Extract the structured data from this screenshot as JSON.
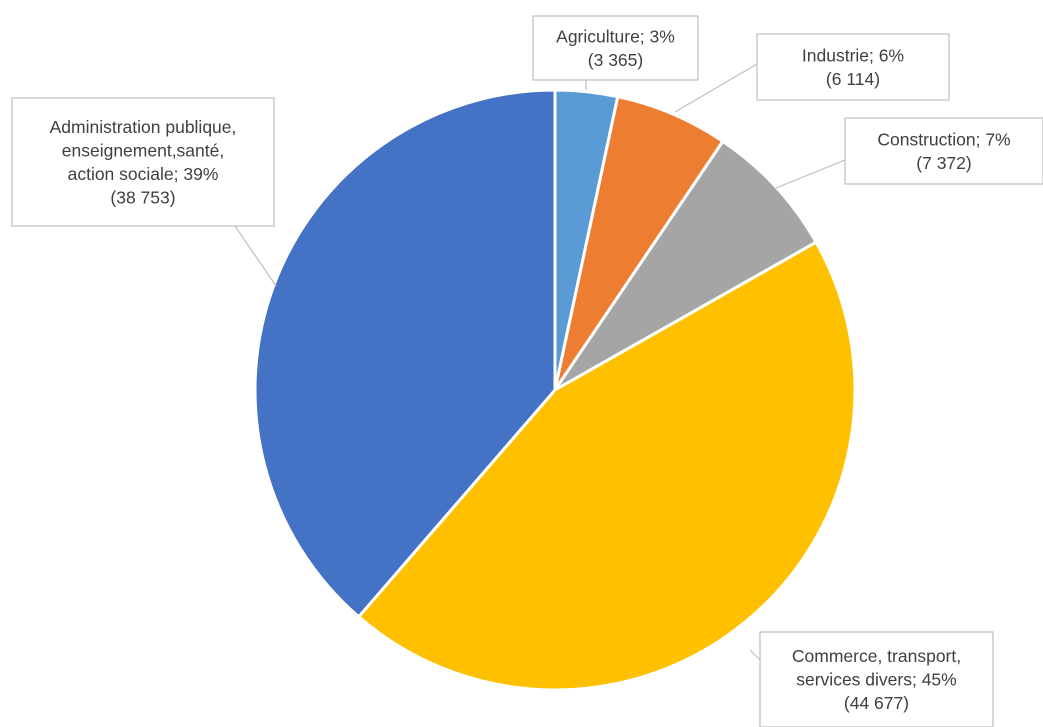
{
  "chart_data": {
    "type": "pie",
    "title": "",
    "legend": "none",
    "categories": [
      "Agriculture",
      "Industrie",
      "Construction",
      "Commerce, transport, services divers",
      "Administration publique, enseignement,santé, action sociale"
    ],
    "values": [
      3365,
      6114,
      7372,
      44677,
      38753
    ],
    "percents": [
      3,
      6,
      7,
      45,
      39
    ],
    "colors": [
      "#5b9bd5",
      "#ed7d31",
      "#a5a5a5",
      "#ffc000",
      "#4472c4"
    ],
    "labels": [
      {
        "lines": [
          "Agriculture; 3%",
          "(3 365)"
        ]
      },
      {
        "lines": [
          "Industrie; 6%",
          "(6 114)"
        ]
      },
      {
        "lines": [
          "Construction; 7%",
          "(7 372)"
        ]
      },
      {
        "lines": [
          "Commerce, transport,",
          "services divers; 45%",
          "(44 677)"
        ]
      },
      {
        "lines": [
          "Administration publique,",
          "enseignement,santé,",
          "action sociale; 39%",
          "(38 753)"
        ]
      }
    ]
  }
}
